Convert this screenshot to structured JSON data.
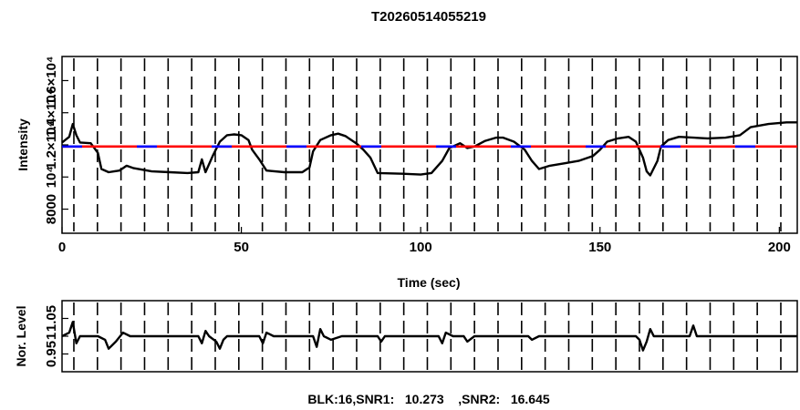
{
  "chart_data": [
    {
      "type": "line",
      "title": "T20260514055219",
      "xlabel": "Time (sec)",
      "ylabel": "Intensity",
      "xlim": [
        0,
        205
      ],
      "ylim": [
        6500,
        17500
      ],
      "x_ticks": [
        0,
        50,
        100,
        150,
        200
      ],
      "y_tick_labels": [
        "8000",
        "10⁴",
        "1.2×10⁴",
        "1.4×10⁴",
        "1.6×10⁴"
      ],
      "y_tick_values": [
        8000,
        10000,
        12000,
        14000,
        16000
      ],
      "grid": "dashed vertical lines",
      "series": [
        {
          "color": "#000000",
          "style": "solid",
          "points": [
            [
              0,
              12150
            ],
            [
              2,
              12500
            ],
            [
              3,
              13300
            ],
            [
              4,
              12600
            ],
            [
              5,
              12150
            ],
            [
              8,
              12100
            ],
            [
              10,
              11500
            ],
            [
              11,
              10500
            ],
            [
              13,
              10300
            ],
            [
              16,
              10400
            ],
            [
              18,
              10700
            ],
            [
              20,
              10550
            ],
            [
              25,
              10350
            ],
            [
              30,
              10300
            ],
            [
              35,
              10250
            ],
            [
              38,
              10300
            ],
            [
              39,
              11100
            ],
            [
              40,
              10300
            ],
            [
              42,
              11300
            ],
            [
              44,
              12200
            ],
            [
              46,
              12600
            ],
            [
              48,
              12650
            ],
            [
              50,
              12600
            ],
            [
              52,
              12300
            ],
            [
              53,
              11700
            ],
            [
              55,
              11100
            ],
            [
              57,
              10400
            ],
            [
              62,
              10300
            ],
            [
              67,
              10300
            ],
            [
              69,
              10600
            ],
            [
              70,
              11600
            ],
            [
              72,
              12300
            ],
            [
              75,
              12600
            ],
            [
              77,
              12700
            ],
            [
              79,
              12550
            ],
            [
              82,
              12100
            ],
            [
              84,
              11700
            ],
            [
              86,
              11200
            ],
            [
              88,
              10250
            ],
            [
              95,
              10200
            ],
            [
              100,
              10150
            ],
            [
              103,
              10250
            ],
            [
              106,
              11000
            ],
            [
              108,
              11800
            ],
            [
              111,
              12100
            ],
            [
              113,
              11800
            ],
            [
              115,
              11900
            ],
            [
              118,
              12250
            ],
            [
              121,
              12450
            ],
            [
              123,
              12450
            ],
            [
              126,
              12200
            ],
            [
              129,
              11700
            ],
            [
              131,
              11000
            ],
            [
              133,
              10500
            ],
            [
              136,
              10700
            ],
            [
              140,
              10850
            ],
            [
              144,
              11000
            ],
            [
              148,
              11300
            ],
            [
              150,
              11700
            ],
            [
              152,
              12200
            ],
            [
              155,
              12400
            ],
            [
              158,
              12500
            ],
            [
              160,
              12200
            ],
            [
              162,
              11200
            ],
            [
              163,
              10350
            ],
            [
              164,
              10100
            ],
            [
              166,
              11000
            ],
            [
              167,
              11900
            ],
            [
              169,
              12300
            ],
            [
              172,
              12500
            ],
            [
              180,
              12400
            ],
            [
              185,
              12450
            ],
            [
              189,
              12600
            ],
            [
              192,
              13100
            ],
            [
              197,
              13300
            ],
            [
              202,
              13400
            ],
            [
              205,
              13400
            ]
          ]
        },
        {
          "color": "#ff0000",
          "style": "solid",
          "points": [
            [
              0,
              11900
            ],
            [
              205,
              11900
            ]
          ]
        },
        {
          "color": "#0000ff",
          "style": "dashed",
          "points": [
            [
              0,
              11900
            ],
            [
              205,
              11900
            ]
          ]
        }
      ]
    },
    {
      "type": "line",
      "title": "BLK:16,SNR1:   10.273    ,SNR2:   16.645",
      "xlabel": "",
      "ylabel": "Nor. Level",
      "xlim": [
        0,
        205
      ],
      "ylim": [
        0.9,
        1.1
      ],
      "y_tick_labels": [
        "0.95",
        "1",
        "1.05"
      ],
      "y_tick_values": [
        0.95,
        1.0,
        1.05
      ],
      "grid": "dashed vertical lines",
      "series": [
        {
          "color": "#000000",
          "style": "solid",
          "points": [
            [
              0,
              1.0
            ],
            [
              2,
              1.01
            ],
            [
              3,
              1.04
            ],
            [
              4,
              0.98
            ],
            [
              5,
              1.0
            ],
            [
              10,
              1.0
            ],
            [
              12,
              0.99
            ],
            [
              13,
              0.965
            ],
            [
              15,
              0.985
            ],
            [
              17,
              1.01
            ],
            [
              19,
              1.0
            ],
            [
              22,
              1.0
            ],
            [
              38,
              1.0
            ],
            [
              39,
              0.98
            ],
            [
              40,
              1.015
            ],
            [
              41,
              1.0
            ],
            [
              43,
              0.985
            ],
            [
              44,
              0.965
            ],
            [
              45,
              0.99
            ],
            [
              46,
              1.0
            ],
            [
              55,
              1.0
            ],
            [
              56,
              0.98
            ],
            [
              57,
              1.01
            ],
            [
              59,
              1.0
            ],
            [
              70,
              1.0
            ],
            [
              71,
              0.97
            ],
            [
              72,
              1.02
            ],
            [
              73,
              1.0
            ],
            [
              75,
              0.99
            ],
            [
              78,
              1.0
            ],
            [
              88,
              1.0
            ],
            [
              89,
              0.985
            ],
            [
              90,
              1.0
            ],
            [
              105,
              1.0
            ],
            [
              106,
              0.98
            ],
            [
              107,
              1.01
            ],
            [
              109,
              1.0
            ],
            [
              112,
              1.0
            ],
            [
              113,
              0.985
            ],
            [
              115,
              1.0
            ],
            [
              130,
              1.0
            ],
            [
              131,
              0.99
            ],
            [
              133,
              1.0
            ],
            [
              160,
              1.0
            ],
            [
              161,
              0.99
            ],
            [
              162,
              0.96
            ],
            [
              163,
              0.985
            ],
            [
              164,
              1.02
            ],
            [
              165,
              1.0
            ],
            [
              175,
              1.0
            ],
            [
              176,
              1.03
            ],
            [
              177,
              1.0
            ],
            [
              205,
              1.0
            ]
          ]
        }
      ]
    }
  ]
}
